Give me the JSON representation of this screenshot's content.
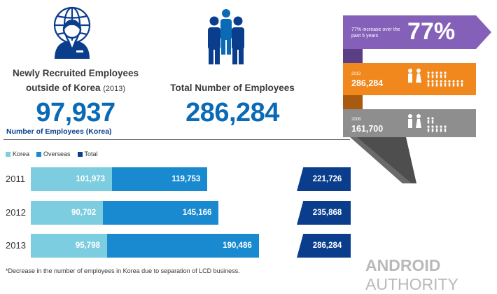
{
  "header": {
    "recruited_label_line1": "Newly Recruited Employees",
    "recruited_label_line2": "outside of Korea",
    "recruited_label_year": "(2013)",
    "recruited_value": "97,937",
    "total_label": "Total Number of Employees",
    "total_value": "286,284"
  },
  "section_title": "Number of Employees (Korea)",
  "ribbon": {
    "increase_text": "77% increase over the past 5 years",
    "increase_pct": "77%",
    "y2013_label": "2013",
    "y2013_value": "286,284",
    "y2008_label": "2008",
    "y2008_value": "161,700"
  },
  "footnote": "*Decrease in the number of employees in Korea due to separation of LCD business.",
  "watermark": {
    "part1": "ANDROID",
    "part2": "AUTHORITY"
  },
  "colors": {
    "korea": "#7ccde0",
    "overseas": "#1a8ad0",
    "total": "#0a3e8c",
    "purple": "#8460b8",
    "orange": "#f0881e",
    "gray": "#8e8e8e"
  },
  "chart_data": {
    "type": "bar",
    "stacked": true,
    "orientation": "horizontal",
    "title": "Number of Employees (Korea)",
    "legend": [
      "Korea",
      "Overseas",
      "Total"
    ],
    "categories": [
      "2011",
      "2012",
      "2013"
    ],
    "series": [
      {
        "name": "Korea",
        "values": [
          101973,
          90702,
          95798
        ],
        "labels": [
          "101,973",
          "90,702",
          "95,798"
        ]
      },
      {
        "name": "Overseas",
        "values": [
          119753,
          145166,
          190486
        ],
        "labels": [
          "119,753",
          "145,166",
          "190,486"
        ]
      }
    ],
    "totals": {
      "values": [
        221726,
        235868,
        286284
      ],
      "labels": [
        "221,726",
        "235,868",
        "286,284"
      ]
    }
  }
}
